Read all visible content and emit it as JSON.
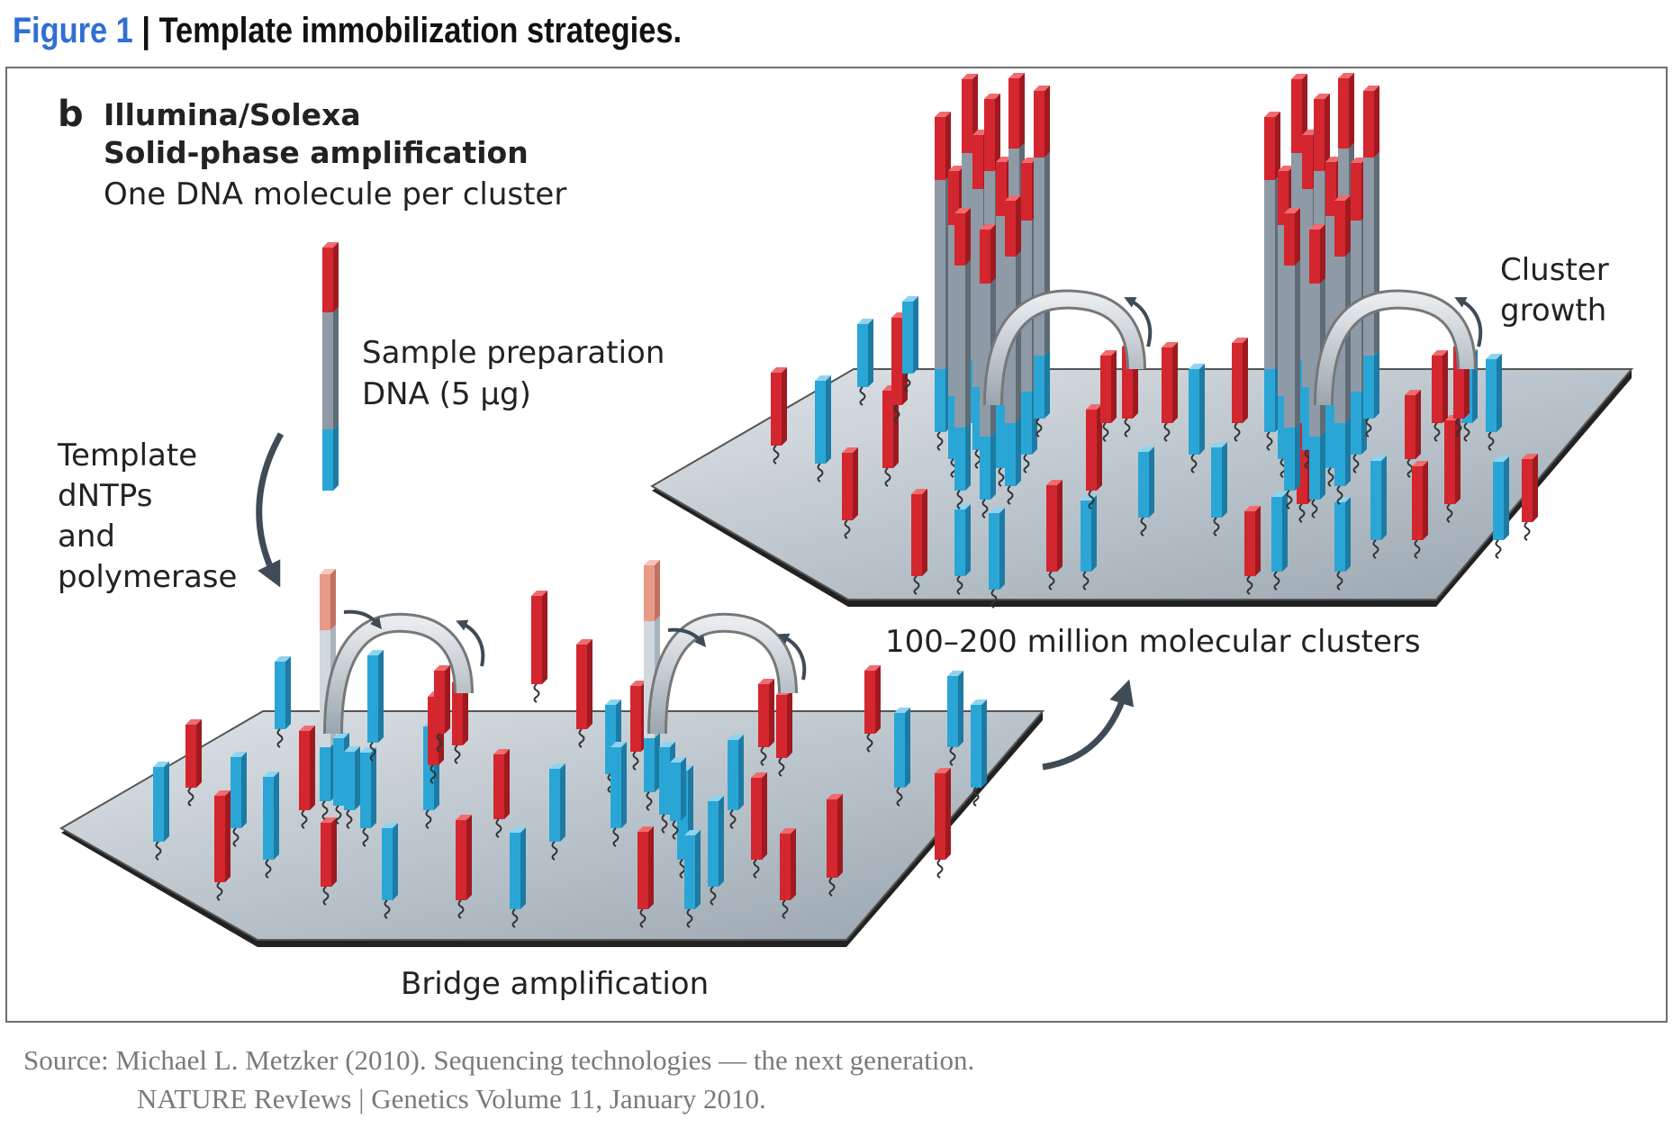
{
  "figure": {
    "number": "Figure 1",
    "separator": "|",
    "title": "Template immobilization strategies."
  },
  "panel": {
    "letter": "b",
    "heading_line1": "Illumina/Solexa",
    "heading_line2": "Solid-phase amplification",
    "heading_line3": "One DNA molecule per cluster"
  },
  "labels": {
    "sample_prep_line1": "Sample preparation",
    "sample_prep_line2": "DNA (5 µg)",
    "template_line1": "Template",
    "template_line2": "dNTPs",
    "template_line3": "and",
    "template_line4": "polymerase",
    "cluster_growth_line1": "Cluster",
    "cluster_growth_line2": "growth",
    "clusters_caption": "100–200 million molecular clusters",
    "bridge_caption": "Bridge amplification"
  },
  "source": {
    "line1": "Source: Michael L. Metzker (2010). Sequencing technologies — the next generation.",
    "line2": "NATURE RevIews | Genetics Volume 11, January 2010."
  },
  "colors": {
    "red": "#d4262e",
    "blue": "#2aa6d6",
    "gray_segment": "#8e9ba6",
    "light_red": "#e89a88",
    "slide_top": "#b6c0c8",
    "slide_edge": "#2a2a2a",
    "arrow": "#3f4b57",
    "figure_blue": "#2f6fd6"
  }
}
